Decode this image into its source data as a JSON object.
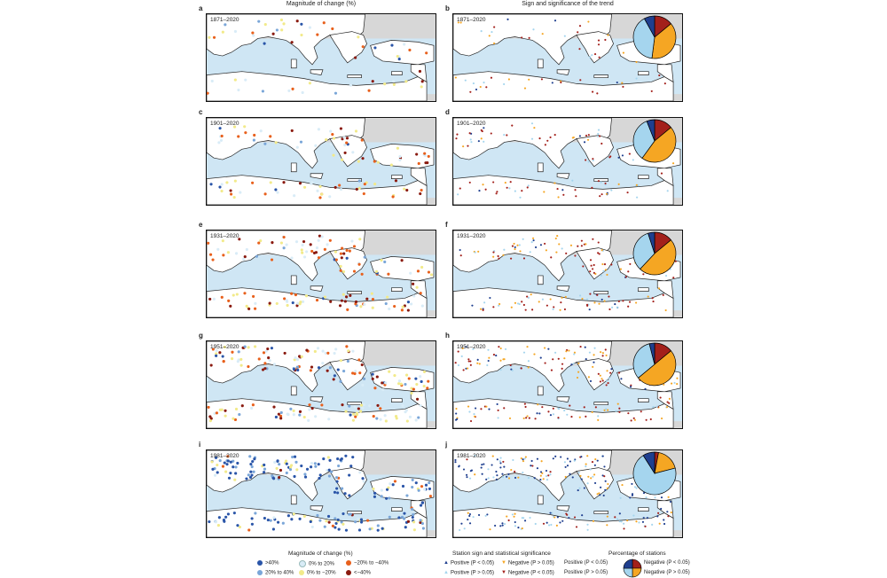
{
  "titles": {
    "left": "Magnitude of change (%)",
    "right": "Sign and significance of the trend"
  },
  "panels": [
    {
      "left": "a",
      "right": "b",
      "period": "1871–2020",
      "density": 0.25
    },
    {
      "left": "c",
      "right": "d",
      "period": "1901–2020",
      "density": 0.45
    },
    {
      "left": "e",
      "right": "f",
      "period": "1931–2020",
      "density": 0.65
    },
    {
      "left": "g",
      "right": "h",
      "period": "1951–2020",
      "density": 0.85
    },
    {
      "left": "i",
      "right": "j",
      "period": "1981–2020",
      "density": 1.0
    }
  ],
  "colors": {
    "sea": "#cfe6f4",
    "land": "#ffffff",
    "outside": "#d7d7d7",
    "border": "#222222",
    "gt40": "#2a55a8",
    "p20_40": "#7aa6d8",
    "p0_20": "#d9ecf7",
    "m0_20": "#f2ea8a",
    "m20_40": "#e8601c",
    "lt40": "#8a1a0f",
    "pos_sig": "#1f3f8f",
    "pos_nsig": "#a5d5ee",
    "neg_nsig": "#f5a623",
    "neg_sig": "#a3201b"
  },
  "chart_data": {
    "type": "pie",
    "title": "Percentage of stations",
    "categories": [
      "Positive (P < 0.05)",
      "Positive (P > 0.05)",
      "Negative (P > 0.05)",
      "Negative (P < 0.05)"
    ],
    "series": [
      {
        "name": "1871–2020",
        "values": [
          8,
          40,
          38,
          14
        ]
      },
      {
        "name": "1901–2020",
        "values": [
          6,
          34,
          46,
          14
        ]
      },
      {
        "name": "1931–2020",
        "values": [
          5,
          33,
          48,
          14
        ]
      },
      {
        "name": "1951–2020",
        "values": [
          4,
          32,
          50,
          14
        ]
      },
      {
        "name": "1981–2020",
        "values": [
          9,
          70,
          18,
          3
        ]
      }
    ]
  },
  "legend_magnitude": {
    "title": "Magnitude of change (%)",
    "items": [
      ">40%",
      "0% to 20%",
      "−20% to −40%",
      "20% to 40%",
      "0% to −20%",
      "<−40%"
    ]
  },
  "legend_significance": {
    "title": "Station sign and statistical significance",
    "items": [
      "Positive (P < 0.05)",
      "Negative (P > 0.05)",
      "Positive (P > 0.05)",
      "Negative (P < 0.05)"
    ]
  },
  "legend_pie": {
    "title": "Percentage of stations",
    "items": [
      "Positive (P < 0.05)",
      "Negative (P < 0.05)",
      "Positive (P > 0.05)",
      "Negative (P > 0.05)"
    ]
  }
}
